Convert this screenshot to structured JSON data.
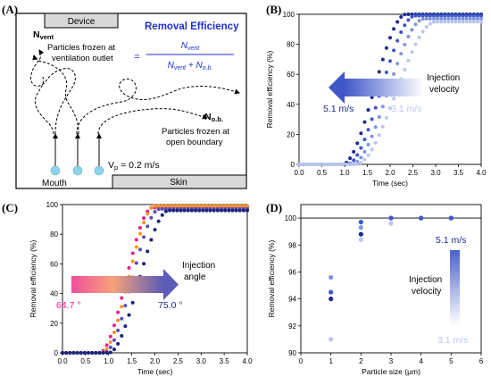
{
  "colors": {
    "dark_blue": "#1c2a8c",
    "mid_blue": "#3f57c9",
    "light_blue": "#7f95e0",
    "pale_blue": "#b9c6ef",
    "pink": "#ef1f8a",
    "orange": "#f7941d",
    "indigo": "#5a4cb8",
    "navy": "#18237a",
    "title_blue": "#2130d6",
    "mouth_cyan": "#8fd3e8"
  },
  "panels": {
    "a_label": "(A)",
    "b_label": "(B)",
    "c_label": "(C)",
    "d_label": "(D)"
  },
  "schematic": {
    "device": "Device",
    "skin": "Skin",
    "mouth": "Mouth",
    "removal_title": "Removal Efficiency",
    "formula_num": "N",
    "formula_num_sub": "vent",
    "formula_den_a": "N",
    "formula_den_a_sub": "vent",
    "formula_plus": " + N",
    "formula_den_b_sub": "o.b.",
    "n_vent": "N",
    "n_vent_sub": "vent",
    "vent_text_1": "Particles frozen at",
    "vent_text_2": "ventilation outlet",
    "n_ob": "N",
    "n_ob_sub": "o.b.",
    "ob_text_1": "Particles frozen at",
    "ob_text_2": "open boundary",
    "vp": "V",
    "vp_sub": "p",
    "vp_value": " = 0.2 m/s"
  },
  "annotations": {
    "b_inj_1": "Injection",
    "b_inj_2": "velocity",
    "b_hi": "5.1 m/s",
    "b_lo": "3.1 m/s",
    "c_inj_1": "Injection",
    "c_inj_2": "angle",
    "c_lo": "64.7 °",
    "c_hi": "75.0 °",
    "d_hi": "5.1 m/s",
    "d_lo": "3.1 m/s",
    "d_inj_1": "Injection",
    "d_inj_2": "velocity"
  },
  "chart_data": [
    {
      "panel": "B",
      "type": "scatter",
      "xlabel": "Time (sec)",
      "ylabel": "Removal efficiency (%)",
      "xlim": [
        0,
        4
      ],
      "ylim": [
        0,
        100
      ],
      "xticks": [
        0.0,
        0.5,
        1.0,
        1.5,
        2.0,
        2.5,
        3.0,
        3.5,
        4.0
      ],
      "xtick_labels": [
        "0.0",
        "0.5",
        "1.0",
        "1.5",
        "2.0",
        "2.5",
        "3.0",
        "3.5",
        "4.0"
      ],
      "yticks": [
        0,
        20,
        40,
        60,
        80,
        100
      ],
      "ytick_labels": [
        "0",
        "20",
        "40",
        "60",
        "80",
        "100"
      ],
      "series": [
        {
          "name": "5.1 m/s",
          "color": "#1c2a8c",
          "t0": 0.95,
          "t1": 2.35,
          "final": 100
        },
        {
          "name": "",
          "color": "#3f57c9",
          "t0": 1.05,
          "t1": 2.55,
          "final": 99
        },
        {
          "name": "",
          "color": "#7f95e0",
          "t0": 1.15,
          "t1": 2.75,
          "final": 97
        },
        {
          "name": "3.1 m/s",
          "color": "#b9c6ef",
          "t0": 1.25,
          "t1": 3.0,
          "final": 95
        }
      ]
    },
    {
      "panel": "C",
      "type": "scatter",
      "xlabel": "Time (sec)",
      "ylabel": "Removal efficiency (%)",
      "xlim": [
        0,
        4
      ],
      "ylim": [
        0,
        100
      ],
      "xticks": [
        0.0,
        0.5,
        1.0,
        1.5,
        2.0,
        2.5,
        3.0,
        3.5,
        4.0
      ],
      "xtick_labels": [
        "0.0",
        "0.5",
        "1.0",
        "1.5",
        "2.0",
        "2.5",
        "3.0",
        "3.5",
        "4.0"
      ],
      "yticks": [
        0,
        20,
        40,
        60,
        80,
        100
      ],
      "ytick_labels": [
        "0",
        "20",
        "40",
        "60",
        "80",
        "100"
      ],
      "series": [
        {
          "name": "64.7 °",
          "color": "#ef1f8a",
          "t0": 0.8,
          "t1": 1.95,
          "final": 98
        },
        {
          "name": "",
          "color": "#f7941d",
          "t0": 0.85,
          "t1": 2.0,
          "final": 99
        },
        {
          "name": "",
          "color": "#5a4cb8",
          "t0": 0.9,
          "t1": 2.1,
          "final": 97
        },
        {
          "name": "75.0 °",
          "color": "#18237a",
          "t0": 1.0,
          "t1": 2.3,
          "final": 96
        }
      ]
    },
    {
      "panel": "D",
      "type": "scatter",
      "xlabel": "Particle size (μm)",
      "ylabel": "Removal efficiency (%)",
      "xlim": [
        0,
        6
      ],
      "ylim": [
        90,
        101
      ],
      "xticks": [
        0,
        1,
        2,
        3,
        4,
        5,
        6
      ],
      "xtick_labels": [
        "0",
        "1",
        "2",
        "3",
        "4",
        "5",
        "6"
      ],
      "yticks": [
        90,
        92,
        94,
        96,
        98,
        100
      ],
      "ytick_labels": [
        "90",
        "92",
        "94",
        "96",
        "98",
        "100"
      ],
      "reference_line": 100,
      "points": [
        {
          "x": 1,
          "y": 94.0,
          "color": "#1c2a8c"
        },
        {
          "x": 1,
          "y": 94.5,
          "color": "#3f57c9"
        },
        {
          "x": 1,
          "y": 95.6,
          "color": "#7f95e0"
        },
        {
          "x": 1,
          "y": 91.0,
          "color": "#b9c6ef"
        },
        {
          "x": 2,
          "y": 98.8,
          "color": "#1c2a8c"
        },
        {
          "x": 2,
          "y": 99.7,
          "color": "#3f57c9"
        },
        {
          "x": 2,
          "y": 99.3,
          "color": "#7f95e0"
        },
        {
          "x": 2,
          "y": 98.4,
          "color": "#b9c6ef"
        },
        {
          "x": 3,
          "y": 100,
          "color": "#1c2a8c"
        },
        {
          "x": 3,
          "y": 100,
          "color": "#3f57c9"
        },
        {
          "x": 3,
          "y": 99.6,
          "color": "#b9c6ef"
        },
        {
          "x": 4,
          "y": 100,
          "color": "#1c2a8c"
        },
        {
          "x": 4,
          "y": 100,
          "color": "#3f57c9"
        },
        {
          "x": 5,
          "y": 100,
          "color": "#1c2a8c"
        },
        {
          "x": 5,
          "y": 100,
          "color": "#3f57c9"
        }
      ]
    }
  ]
}
